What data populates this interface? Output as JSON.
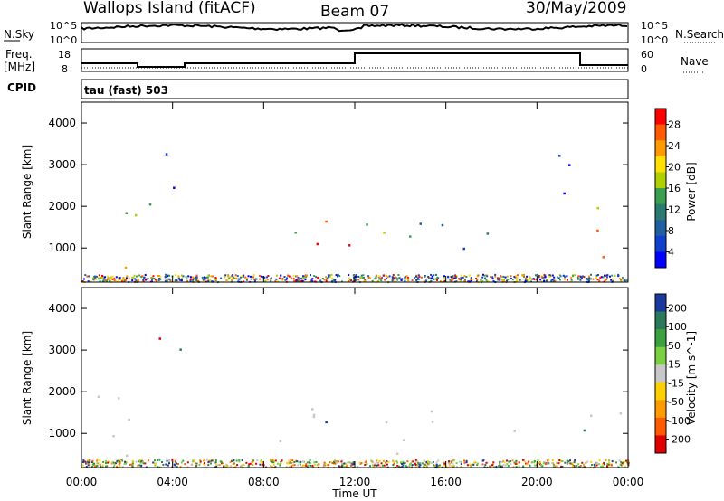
{
  "header": {
    "title": "Wallops Island (fitACF)",
    "beam": "Beam 07",
    "date": "30/May/2009"
  },
  "strip": {
    "nsky_label": "N.Sky",
    "nsky_ticks": [
      "10^5",
      "10^0"
    ],
    "nsearch_label": "N.Search",
    "nsearch_ticks": [
      "10^5",
      "10^0"
    ],
    "freq_label": "Freq.",
    "freq_unit": "[MHz]",
    "freq_ticks": [
      "18",
      "8"
    ],
    "nave_label": "Nave",
    "nave_ticks": [
      "60",
      "0"
    ],
    "cpid_label": "CPID",
    "cpid_value": "tau (fast) 503"
  },
  "x_axis": {
    "label": "Time UT",
    "ticks": [
      "00:00",
      "04:00",
      "08:00",
      "12:00",
      "16:00",
      "20:00",
      "00:00"
    ]
  },
  "y_axis_label": "Slant Range [km]",
  "power_colorbar": {
    "label": "Power [dB]",
    "ticks": [
      "28",
      "24",
      "20",
      "16",
      "12",
      "8",
      "4"
    ],
    "colors": [
      "#ff0000",
      "#ff5a00",
      "#ff9a00",
      "#ffe000",
      "#b0d000",
      "#3aa050",
      "#2a7a70",
      "#2060a0",
      "#1040d0",
      "#0000ff"
    ]
  },
  "velocity_colorbar": {
    "label": "Velocity [m s^-1]",
    "ticks": [
      "200",
      "100",
      "50",
      "15",
      "-15",
      "-50",
      "-100",
      "-200"
    ],
    "colors": [
      "#1a3aa0",
      "#2a7a5a",
      "#3aa040",
      "#7ad040",
      "#c8c8c8",
      "#ffd000",
      "#ff9a00",
      "#ff5a00",
      "#e00000"
    ]
  },
  "chart_data": [
    {
      "type": "heatmap",
      "title": "Power",
      "xlabel": "Time UT",
      "ylabel": "Slant Range [km]",
      "xlim": [
        0,
        24
      ],
      "ylim": [
        180,
        4500
      ],
      "y_ticks": [
        1000,
        2000,
        3000,
        4000
      ],
      "colorbar_ticks": [
        28,
        24,
        20,
        16,
        12,
        8,
        4
      ],
      "regions": [
        {
          "t0": 0.0,
          "t1": 2.2,
          "r0": 300,
          "r1": 900,
          "level": "high"
        },
        {
          "t0": 0.3,
          "t1": 2.5,
          "r0": 1300,
          "r1": 2000,
          "level": "mid"
        },
        {
          "t0": 2.3,
          "t1": 3.5,
          "r0": 1700,
          "r1": 2500,
          "level": "mid"
        },
        {
          "t0": 3.0,
          "t1": 4.5,
          "r0": 2300,
          "r1": 3300,
          "level": "low"
        },
        {
          "t0": 6.8,
          "t1": 9.0,
          "r0": 300,
          "r1": 500,
          "level": "high"
        },
        {
          "t0": 7.5,
          "t1": 9.5,
          "r0": 800,
          "r1": 1400,
          "level": "mid"
        },
        {
          "t0": 10.0,
          "t1": 15.5,
          "r0": 500,
          "r1": 1700,
          "level": "high"
        },
        {
          "t0": 15.0,
          "t1": 19.0,
          "r0": 900,
          "r1": 1600,
          "level": "low"
        },
        {
          "t0": 19.0,
          "t1": 21.5,
          "r0": 2300,
          "r1": 3300,
          "level": "low"
        },
        {
          "t0": 22.0,
          "t1": 24.0,
          "r0": 500,
          "r1": 2000,
          "level": "high"
        }
      ]
    },
    {
      "type": "heatmap",
      "title": "Velocity",
      "xlabel": "Time UT",
      "ylabel": "Slant Range [km]",
      "xlim": [
        0,
        24
      ],
      "ylim": [
        180,
        4500
      ],
      "y_ticks": [
        1000,
        2000,
        3000,
        4000
      ],
      "colorbar_ticks": [
        200,
        100,
        50,
        15,
        -15,
        -50,
        -100,
        -200
      ],
      "regions": [
        {
          "t0": 0.0,
          "t1": 2.3,
          "r0": 300,
          "r1": 1100,
          "level": "zero"
        },
        {
          "t0": 0.5,
          "t1": 3.5,
          "r0": 1300,
          "r1": 2100,
          "level": "zero"
        },
        {
          "t0": 3.0,
          "t1": 4.5,
          "r0": 2000,
          "r1": 3300,
          "level": "mixed"
        },
        {
          "t0": 6.0,
          "t1": 9.0,
          "r0": 250,
          "r1": 550,
          "level": "negative"
        },
        {
          "t0": 7.5,
          "t1": 9.5,
          "r0": 800,
          "r1": 1400,
          "level": "zero"
        },
        {
          "t0": 10.0,
          "t1": 15.5,
          "r0": 500,
          "r1": 1700,
          "level": "zero"
        },
        {
          "t0": 15.0,
          "t1": 19.0,
          "r0": 900,
          "r1": 1600,
          "level": "zero"
        },
        {
          "t0": 22.0,
          "t1": 24.0,
          "r0": 500,
          "r1": 2000,
          "level": "zero"
        }
      ]
    }
  ]
}
